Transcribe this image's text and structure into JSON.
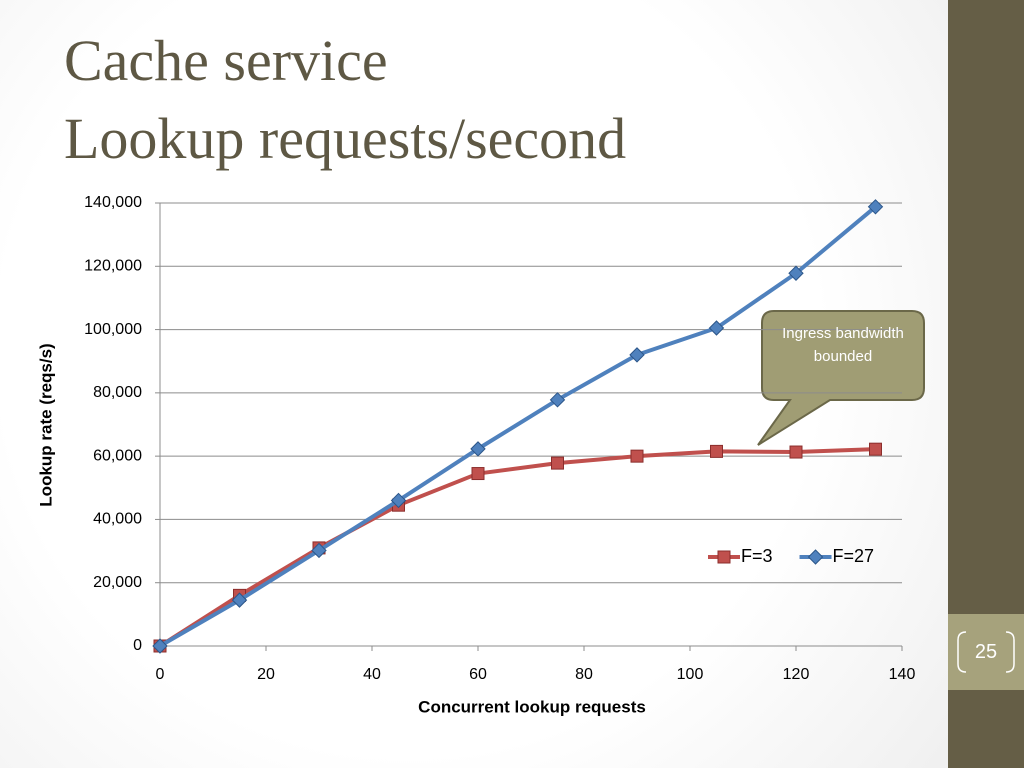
{
  "slide_title": [
    "Cache service",
    "Lookup requests/second"
  ],
  "page_number": "25",
  "chart_data": {
    "type": "line",
    "x_label": "Concurrent lookup requests",
    "y_label": "Lookup rate (reqs/s)",
    "x": [
      0,
      15,
      30,
      45,
      60,
      75,
      90,
      105,
      120,
      135
    ],
    "series": [
      {
        "name": "F=3",
        "color": "#c0504d",
        "marker": "square",
        "values": [
          0,
          16000,
          31000,
          44500,
          54500,
          57800,
          60000,
          61500,
          61300,
          62200
        ]
      },
      {
        "name": "F=27",
        "color": "#4f81bd",
        "marker": "diamond",
        "values": [
          0,
          14500,
          30200,
          46000,
          62300,
          77800,
          92000,
          100500,
          117800,
          138800
        ]
      }
    ],
    "xlim": [
      0,
      140
    ],
    "xticks": [
      0,
      20,
      40,
      60,
      80,
      100,
      120,
      140
    ],
    "ylim": [
      0,
      140000
    ],
    "yticks": [
      0,
      {
        "value": 20000,
        "label": "20,000"
      },
      {
        "value": 40000,
        "label": "40,000"
      },
      {
        "value": 60000,
        "label": "60,000"
      },
      {
        "value": 80000,
        "label": "80,000"
      },
      {
        "value": 100000,
        "label": "100,000"
      },
      {
        "value": 120000,
        "label": "120,000"
      },
      {
        "value": 140000,
        "label": "140,000"
      }
    ],
    "grid": true,
    "legend": "right",
    "annotation": "Ingress bandwidth bounded"
  }
}
